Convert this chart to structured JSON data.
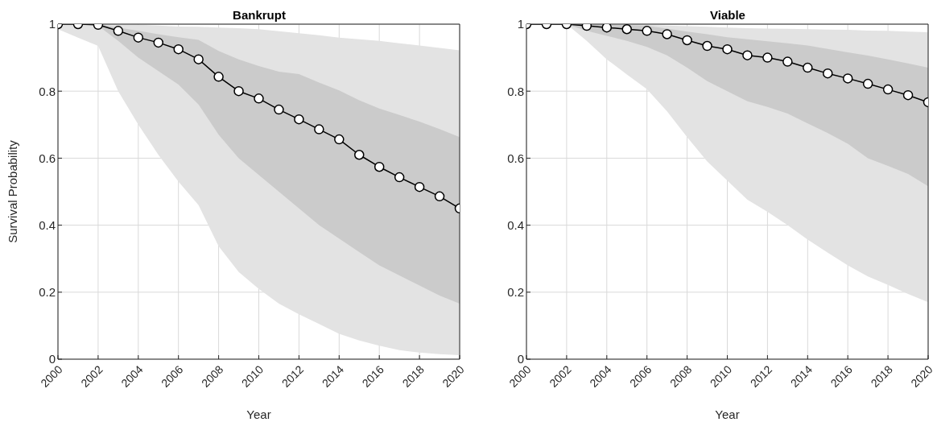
{
  "chart_data": [
    {
      "type": "line",
      "title": "Bankrupt",
      "xlabel": "Year",
      "ylabel": "Survival Probability",
      "x": [
        2000,
        2001,
        2002,
        2003,
        2004,
        2005,
        2006,
        2007,
        2008,
        2009,
        2010,
        2011,
        2012,
        2013,
        2014,
        2015,
        2016,
        2017,
        2018,
        2019,
        2020
      ],
      "xlim": [
        2000,
        2020
      ],
      "xticks": [
        2000,
        2002,
        2004,
        2006,
        2008,
        2010,
        2012,
        2014,
        2016,
        2018,
        2020
      ],
      "ylim": [
        0,
        1
      ],
      "yticks": [
        0,
        0.2,
        0.4,
        0.6,
        0.8,
        1
      ],
      "grid": true,
      "marker": "circle",
      "series": [
        {
          "color": "#e3e3e3",
          "values": [
            null,
            null,
            null,
            null,
            null,
            null,
            null,
            null,
            null,
            null,
            null,
            null,
            null,
            null,
            null,
            null,
            null,
            null,
            null,
            null,
            null
          ],
          "lower": [
            0.985,
            0.96,
            0.935,
            0.8,
            0.7,
            0.61,
            0.53,
            0.46,
            0.337,
            0.26,
            0.21,
            0.166,
            0.134,
            0.105,
            0.076,
            0.056,
            0.04,
            0.027,
            0.02,
            0.015,
            0.012
          ],
          "upper": [
            1,
            1,
            1,
            1,
            0.998,
            0.996,
            0.993,
            0.992,
            0.99,
            0.988,
            0.985,
            0.979,
            0.973,
            0.967,
            0.96,
            0.955,
            0.95,
            0.943,
            0.936,
            0.929,
            0.922
          ]
        },
        {
          "color": "#cbcbcb",
          "values": [
            null,
            null,
            null,
            null,
            null,
            null,
            null,
            null,
            null,
            null,
            null,
            null,
            null,
            null,
            null,
            null,
            null,
            null,
            null,
            null,
            null
          ],
          "lower": [
            1,
            1,
            0.995,
            0.95,
            0.9,
            0.86,
            0.82,
            0.76,
            0.67,
            0.6,
            0.55,
            0.5,
            0.45,
            0.4,
            0.36,
            0.32,
            0.28,
            0.25,
            0.22,
            0.19,
            0.166
          ],
          "upper": [
            1,
            1,
            1,
            0.99,
            0.98,
            0.97,
            0.961,
            0.953,
            0.92,
            0.895,
            0.875,
            0.858,
            0.851,
            0.826,
            0.802,
            0.773,
            0.748,
            0.729,
            0.709,
            0.687,
            0.663
          ]
        },
        {
          "color": "#000000",
          "values": [
            1,
            1,
            0.998,
            0.98,
            0.96,
            0.945,
            0.925,
            0.895,
            0.843,
            0.8,
            0.778,
            0.745,
            0.716,
            0.686,
            0.656,
            0.61,
            0.574,
            0.543,
            0.514,
            0.486,
            0.45
          ]
        }
      ]
    },
    {
      "type": "line",
      "title": "Viable",
      "xlabel": "Year",
      "x": [
        2000,
        2001,
        2002,
        2003,
        2004,
        2005,
        2006,
        2007,
        2008,
        2009,
        2010,
        2011,
        2012,
        2013,
        2014,
        2015,
        2016,
        2017,
        2018,
        2019,
        2020
      ],
      "xlim": [
        2000,
        2020
      ],
      "xticks": [
        2000,
        2002,
        2004,
        2006,
        2008,
        2010,
        2012,
        2014,
        2016,
        2018,
        2020
      ],
      "ylim": [
        0,
        1
      ],
      "yticks": [
        0,
        0.2,
        0.4,
        0.6,
        0.8,
        1
      ],
      "grid": true,
      "marker": "circle",
      "series": [
        {
          "color": "#e3e3e3",
          "values": [
            null,
            null,
            null,
            null,
            null,
            null,
            null,
            null,
            null,
            null,
            null,
            null,
            null,
            null,
            null,
            null,
            null,
            null,
            null,
            null,
            null
          ],
          "lower": [
            1,
            1,
            1,
            0.95,
            0.895,
            0.85,
            0.806,
            0.74,
            0.663,
            0.59,
            0.533,
            0.476,
            0.44,
            0.4,
            0.357,
            0.318,
            0.28,
            0.247,
            0.222,
            0.195,
            0.17
          ],
          "upper": [
            1,
            1,
            1,
            1,
            1,
            0.999,
            0.998,
            0.996,
            0.994,
            0.992,
            0.99,
            0.988,
            0.987,
            0.986,
            0.985,
            0.984,
            0.983,
            0.981,
            0.98,
            0.978,
            0.976
          ]
        },
        {
          "color": "#cbcbcb",
          "values": [
            null,
            null,
            null,
            null,
            null,
            null,
            null,
            null,
            null,
            null,
            null,
            null,
            null,
            null,
            null,
            null,
            null,
            null,
            null,
            null,
            null
          ],
          "lower": [
            1,
            1,
            1,
            0.98,
            0.965,
            0.95,
            0.932,
            0.907,
            0.87,
            0.83,
            0.8,
            0.77,
            0.753,
            0.733,
            0.704,
            0.675,
            0.643,
            0.6,
            0.577,
            0.553,
            0.516
          ],
          "upper": [
            1,
            1,
            1,
            1,
            0.998,
            0.997,
            0.995,
            0.987,
            0.978,
            0.97,
            0.961,
            0.955,
            0.949,
            0.943,
            0.936,
            0.926,
            0.916,
            0.906,
            0.895,
            0.883,
            0.87
          ]
        },
        {
          "color": "#000000",
          "values": [
            1,
            1,
            1,
            0.995,
            0.99,
            0.985,
            0.98,
            0.97,
            0.952,
            0.935,
            0.925,
            0.907,
            0.9,
            0.888,
            0.87,
            0.853,
            0.838,
            0.822,
            0.805,
            0.788,
            0.767
          ]
        }
      ]
    }
  ]
}
